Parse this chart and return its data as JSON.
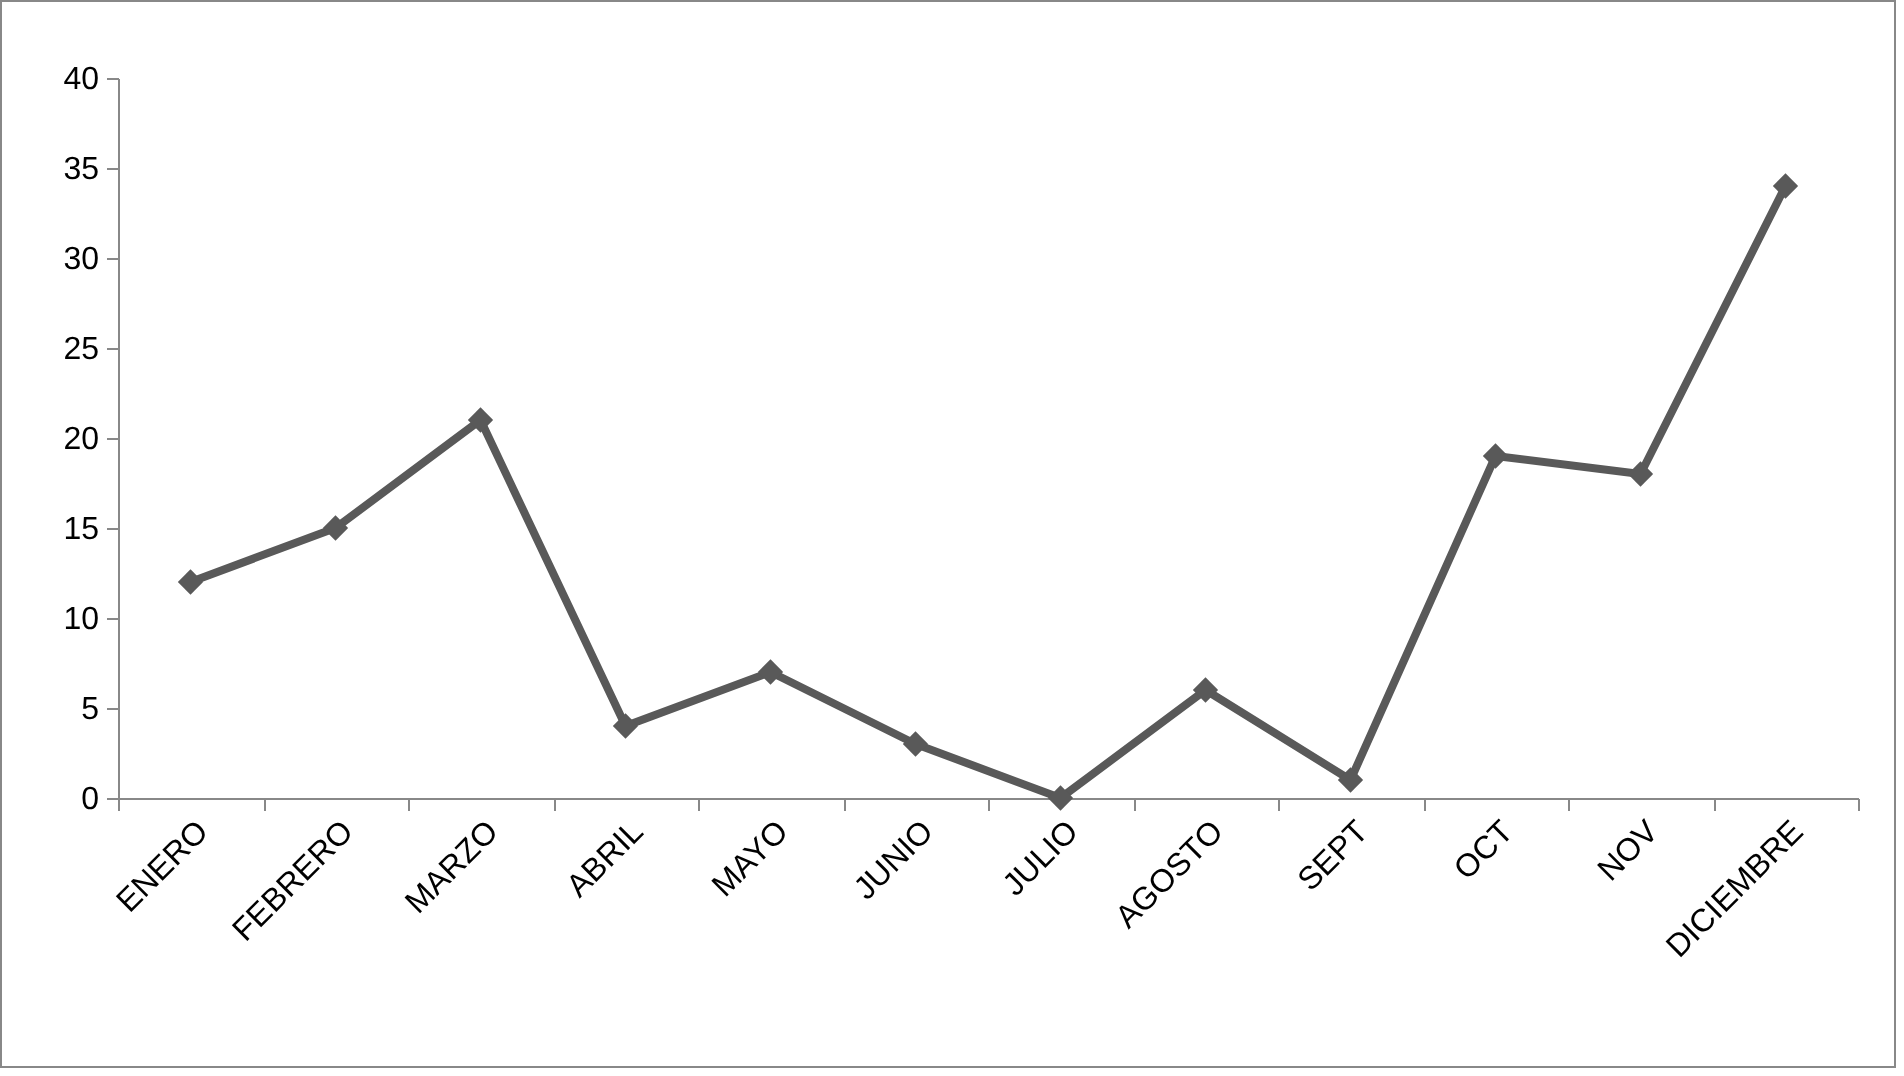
{
  "chart_data": {
    "type": "line",
    "categories": [
      "ENERO",
      "FEBRERO",
      "MARZO",
      "ABRIL",
      "MAYO",
      "JUNIO",
      "JULIO",
      "AGOSTO",
      "SEPT",
      "OCT",
      "NOV",
      "DICIEMBRE"
    ],
    "series": [
      {
        "color": "#595959",
        "values": [
          12,
          15,
          21,
          4,
          7,
          3,
          0,
          6,
          1,
          19,
          18,
          34
        ]
      }
    ],
    "ylim": [
      0,
      40
    ],
    "yticks": [
      0,
      5,
      10,
      15,
      20,
      25,
      30,
      35,
      40
    ],
    "grid": false,
    "legend": false,
    "marker": "diamond",
    "line_style": "solid"
  }
}
